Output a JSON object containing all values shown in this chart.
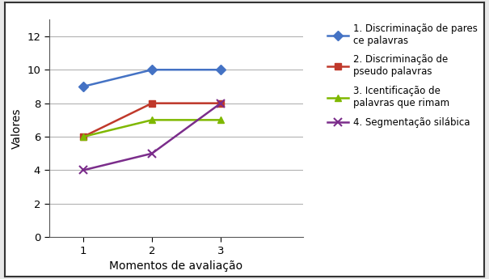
{
  "x": [
    1,
    2,
    3
  ],
  "series": [
    {
      "label": "1. Discriminação de pares\nce palavras",
      "values": [
        9,
        10,
        10
      ],
      "color": "#4472C4",
      "marker": "D",
      "markersize": 6,
      "linewidth": 1.8
    },
    {
      "label": "2. Discriminação de\npseudo palavras",
      "values": [
        6,
        8,
        8
      ],
      "color": "#C0392B",
      "marker": "s",
      "markersize": 6,
      "linewidth": 1.8
    },
    {
      "label": "3. Icentificação de\npalavras que rimam",
      "values": [
        6,
        7,
        7
      ],
      "color": "#7FB800",
      "marker": "^",
      "markersize": 6,
      "linewidth": 1.8
    },
    {
      "label": "4. Segmentação silábica",
      "values": [
        4,
        5,
        8
      ],
      "color": "#7B2D8B",
      "marker": "x",
      "markersize": 7,
      "linewidth": 1.8
    }
  ],
  "xlabel": "Momentos de avaliação",
  "ylabel": "Valores",
  "ylim": [
    0,
    13
  ],
  "yticks": [
    0,
    2,
    4,
    6,
    8,
    10,
    12
  ],
  "xlim": [
    0.5,
    4.2
  ],
  "xticks": [
    1,
    2,
    3
  ],
  "legend_fontsize": 8.5,
  "axis_label_fontsize": 10,
  "tick_fontsize": 9.5,
  "background_color": "#FFFFFF",
  "grid_color": "#AAAAAA",
  "frame_color": "#333333",
  "outer_bg": "#E8E8E8"
}
